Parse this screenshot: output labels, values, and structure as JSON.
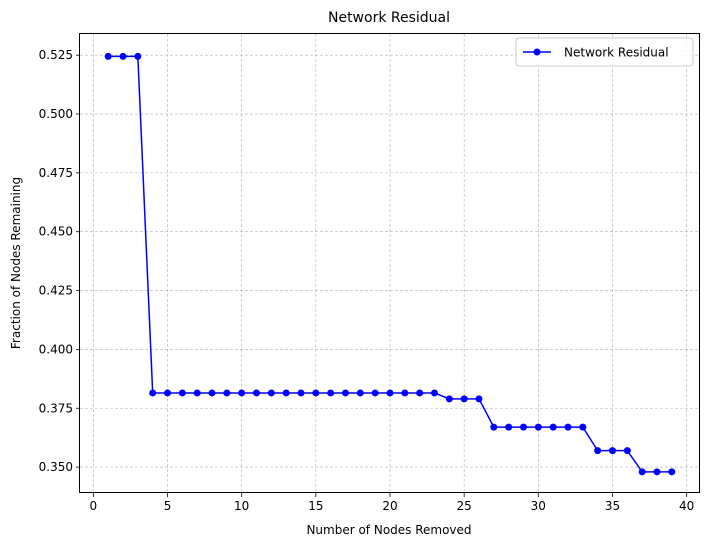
{
  "chart_data": {
    "type": "line",
    "title": "Network Residual",
    "xlabel": "Number of Nodes Removed",
    "ylabel": "Fraction of Nodes Remaining",
    "xlim": [
      -0.9,
      40.9
    ],
    "ylim": [
      0.339,
      0.534
    ],
    "xticks": [
      0,
      5,
      10,
      15,
      20,
      25,
      30,
      35,
      40
    ],
    "yticks": [
      0.35,
      0.375,
      0.4,
      0.425,
      0.45,
      0.475,
      0.5,
      0.525
    ],
    "ytick_labels": [
      "0.350",
      "0.375",
      "0.400",
      "0.425",
      "0.450",
      "0.475",
      "0.500",
      "0.525"
    ],
    "grid": true,
    "legend_position": "top-right",
    "series": [
      {
        "name": "Network Residual",
        "color": "#0000ff",
        "marker": "circle",
        "x": [
          1,
          2,
          3,
          4,
          5,
          6,
          7,
          8,
          9,
          10,
          11,
          12,
          13,
          14,
          15,
          16,
          17,
          18,
          19,
          20,
          21,
          22,
          23,
          24,
          25,
          26,
          27,
          28,
          29,
          30,
          31,
          32,
          33,
          34,
          35,
          36,
          37,
          38,
          39
        ],
        "values": [
          0.5245,
          0.5245,
          0.5245,
          0.3815,
          0.3815,
          0.3815,
          0.3815,
          0.3815,
          0.3815,
          0.3815,
          0.3815,
          0.3815,
          0.3815,
          0.3815,
          0.3815,
          0.3815,
          0.3815,
          0.3815,
          0.3815,
          0.3815,
          0.3815,
          0.3815,
          0.3815,
          0.379,
          0.379,
          0.379,
          0.367,
          0.367,
          0.367,
          0.367,
          0.367,
          0.367,
          0.367,
          0.357,
          0.357,
          0.357,
          0.348,
          0.348,
          0.348
        ]
      }
    ]
  }
}
